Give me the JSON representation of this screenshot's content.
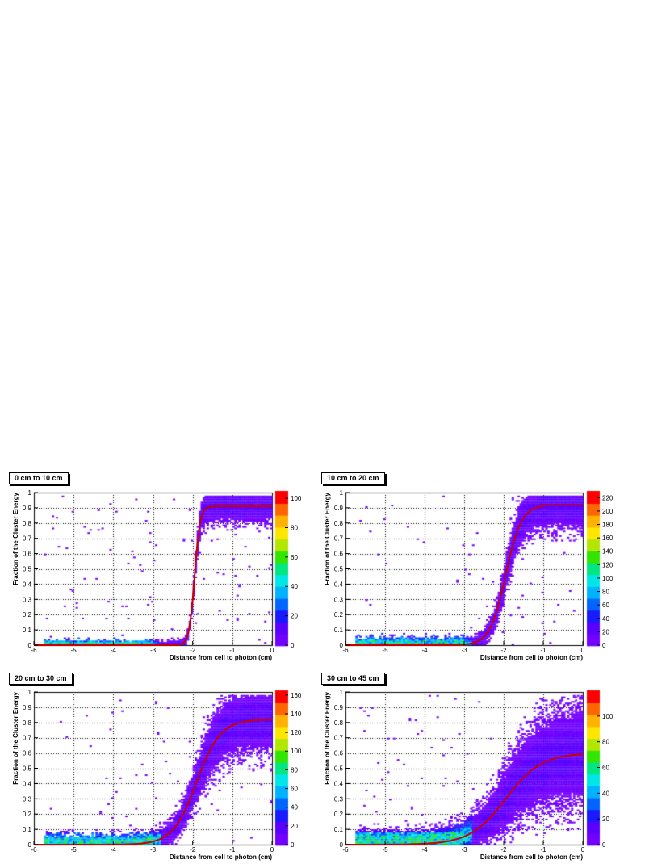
{
  "figure": {
    "panels": [
      {
        "title": "0 cm to 10 cm"
      },
      {
        "title": "10 cm to 20 cm"
      },
      {
        "title": "20 cm to 30 cm"
      },
      {
        "title": "30 cm to 45 cm"
      }
    ]
  },
  "colors": {
    "fit_line": "#cc0000",
    "palette": [
      "#7300ff",
      "#5a00ff",
      "#1a1aff",
      "#0066ff",
      "#00b3ff",
      "#00e6e6",
      "#00e680",
      "#33e600",
      "#b3e600",
      "#ffe600",
      "#ffb300",
      "#ff6600",
      "#ff0000"
    ]
  },
  "chart_data": [
    {
      "type": "heatmap",
      "title": "0 cm to 10 cm",
      "xlabel": "Distance from cell to photon (cm)",
      "ylabel": "Fraction of the Cluster Energy",
      "xlim": [
        -6,
        0
      ],
      "ylim": [
        0,
        1
      ],
      "xticks": [
        "-6",
        "-5",
        "-4",
        "-3",
        "-2",
        "-1",
        "0"
      ],
      "yticks": [
        "0",
        "0.1",
        "0.2",
        "0.3",
        "0.4",
        "0.5",
        "0.6",
        "0.7",
        "0.8",
        "0.9",
        "1"
      ],
      "zlim": [
        0,
        105
      ],
      "zticks": [
        "0",
        "20",
        "40",
        "60",
        "80",
        "100"
      ],
      "grid": true,
      "fit": {
        "type": "sigmoid",
        "plateau": 0.91,
        "center": -1.95,
        "width": 0.07
      }
    },
    {
      "type": "heatmap",
      "title": "10 cm to 20 cm",
      "xlabel": "Distance from cell to photon (cm)",
      "ylabel": "Fraction of the Cluster Energy",
      "xlim": [
        -6,
        0
      ],
      "ylim": [
        0,
        1
      ],
      "xticks": [
        "-6",
        "-5",
        "-4",
        "-3",
        "-2",
        "-1",
        "0"
      ],
      "yticks": [
        "0",
        "0.1",
        "0.2",
        "0.3",
        "0.4",
        "0.5",
        "0.6",
        "0.7",
        "0.8",
        "0.9",
        "1"
      ],
      "zlim": [
        0,
        230
      ],
      "zticks": [
        "0",
        "20",
        "40",
        "60",
        "80",
        "100",
        "120",
        "140",
        "160",
        "180",
        "200",
        "220"
      ],
      "grid": true,
      "fit": {
        "type": "sigmoid",
        "plateau": 0.92,
        "center": -1.95,
        "width": 0.2
      }
    },
    {
      "type": "heatmap",
      "title": "20 cm to 30 cm",
      "xlabel": "Distance from cell to photon (cm)",
      "ylabel": "Fraction of the Cluster Energy",
      "xlim": [
        -6,
        0
      ],
      "ylim": [
        0,
        1
      ],
      "xticks": [
        "-6",
        "-5",
        "-4",
        "-3",
        "-2",
        "-1",
        "0"
      ],
      "yticks": [
        "0",
        "0.1",
        "0.2",
        "0.3",
        "0.4",
        "0.5",
        "0.6",
        "0.7",
        "0.8",
        "0.9",
        "1"
      ],
      "zlim": [
        0,
        165
      ],
      "zticks": [
        "0",
        "20",
        "40",
        "60",
        "80",
        "100",
        "120",
        "140",
        "160"
      ],
      "grid": true,
      "fit": {
        "type": "sigmoid",
        "plateau": 0.82,
        "center": -1.9,
        "width": 0.3
      }
    },
    {
      "type": "heatmap",
      "title": "30 cm to 45 cm",
      "xlabel": "Distance from cell to photon (cm)",
      "ylabel": "Fraction of the Cluster Energy",
      "xlim": [
        -6,
        0
      ],
      "ylim": [
        0,
        1
      ],
      "xticks": [
        "-6",
        "-5",
        "-4",
        "-3",
        "-2",
        "-1",
        "0"
      ],
      "yticks": [
        "0",
        "0.1",
        "0.2",
        "0.3",
        "0.4",
        "0.5",
        "0.6",
        "0.7",
        "0.8",
        "0.9",
        "1"
      ],
      "zlim": [
        0,
        120
      ],
      "zticks": [
        "0",
        "20",
        "40",
        "60",
        "80",
        "100"
      ],
      "grid": true,
      "fit": {
        "type": "sigmoid",
        "plateau": 0.6,
        "center": -1.95,
        "width": 0.45
      }
    }
  ]
}
